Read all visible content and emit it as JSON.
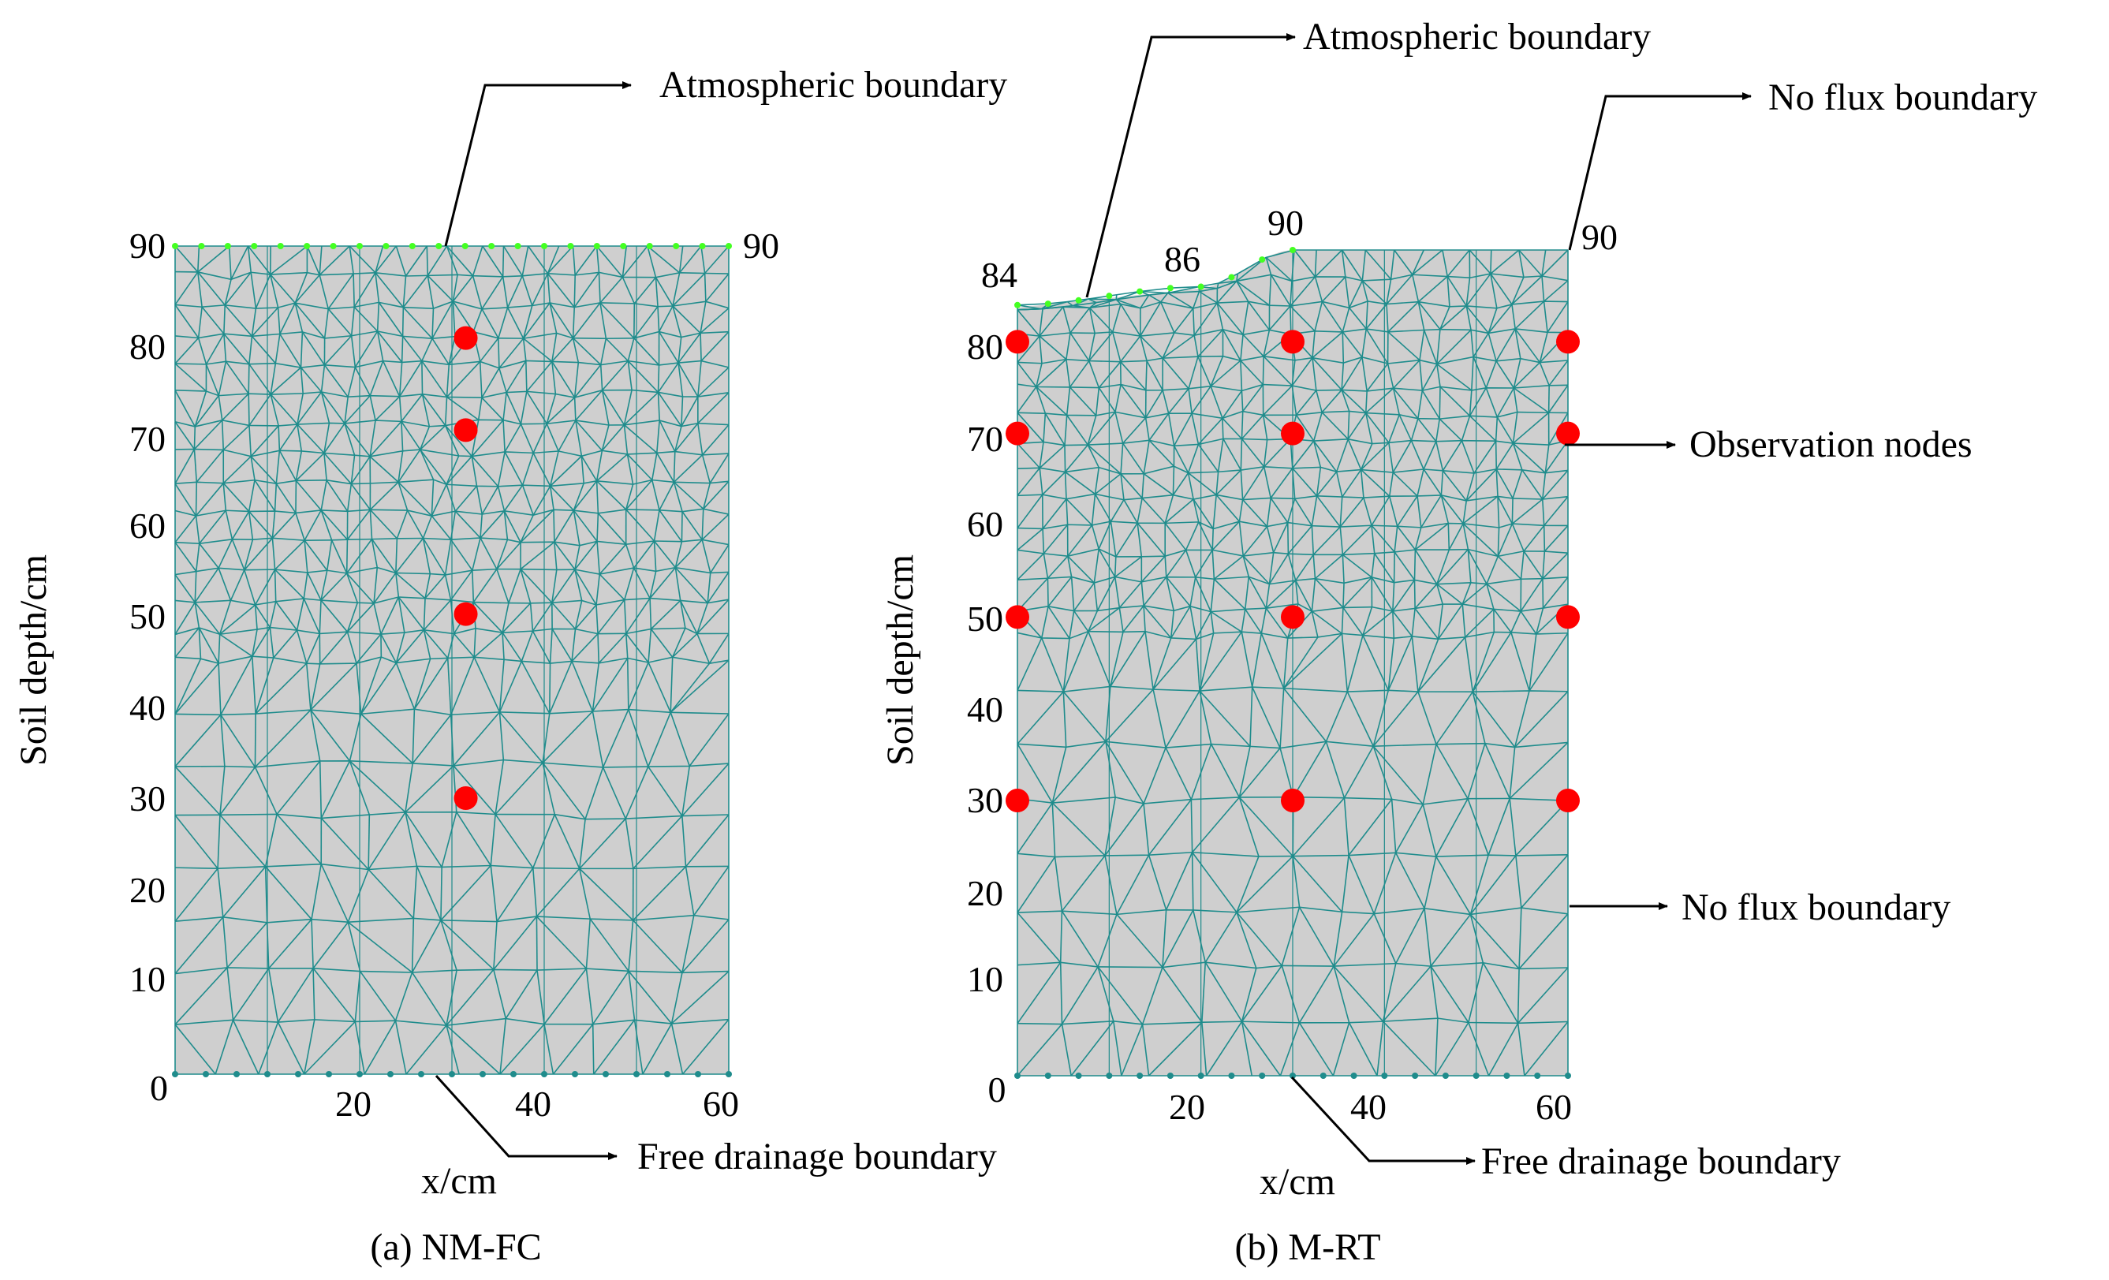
{
  "panels": [
    {
      "caption": "(a) NM-FC",
      "y_axis_label": "Soil depth/cm",
      "x_axis_label": "x/cm",
      "y_ticks": [
        "0",
        "10",
        "20",
        "30",
        "40",
        "50",
        "60",
        "70",
        "80",
        "90"
      ],
      "x_ticks": [
        "20",
        "40",
        "60"
      ],
      "surface_labels": [
        "90"
      ],
      "annotations": {
        "top": "Atmospheric boundary",
        "bottom": "Free drainage boundary"
      },
      "observation_nodes": [
        {
          "x": 31.5,
          "depth": 80
        },
        {
          "x": 31.5,
          "depth": 70
        },
        {
          "x": 31.5,
          "depth": 50
        },
        {
          "x": 31.5,
          "depth": 30
        }
      ]
    },
    {
      "caption": "(b) M-RT",
      "y_axis_label": "Soil depth/cm",
      "x_axis_label": "x/cm",
      "y_ticks": [
        "0",
        "10",
        "20",
        "30",
        "40",
        "50",
        "60",
        "70",
        "80"
      ],
      "x_ticks": [
        "20",
        "40",
        "60"
      ],
      "surface_labels": [
        "84",
        "86",
        "90",
        "90"
      ],
      "surface_profile": [
        {
          "x": 0,
          "depth": 84
        },
        {
          "x": 20,
          "depth": 86
        },
        {
          "x": 30,
          "depth": 90
        },
        {
          "x": 60,
          "depth": 90
        }
      ],
      "annotations": {
        "top": "Atmospheric boundary",
        "no_flux_top": "No flux boundary",
        "observation": "Observation nodes",
        "no_flux_side": "No flux boundary",
        "bottom": "Free drainage boundary"
      },
      "observation_nodes": [
        {
          "x": 0,
          "depth": 80
        },
        {
          "x": 30,
          "depth": 80
        },
        {
          "x": 60,
          "depth": 80
        },
        {
          "x": 0,
          "depth": 70
        },
        {
          "x": 30,
          "depth": 70
        },
        {
          "x": 60,
          "depth": 70
        },
        {
          "x": 0,
          "depth": 50
        },
        {
          "x": 30,
          "depth": 50
        },
        {
          "x": 60,
          "depth": 50
        },
        {
          "x": 0,
          "depth": 30
        },
        {
          "x": 30,
          "depth": 30
        },
        {
          "x": 60,
          "depth": 30
        }
      ]
    }
  ],
  "colors": {
    "domain_fill": "#cfcfcf",
    "mesh": "#1f8c8c",
    "observation_node": "#ff0000",
    "surface_node": "#44ff22",
    "bottom_node": "#1f8c8c"
  }
}
